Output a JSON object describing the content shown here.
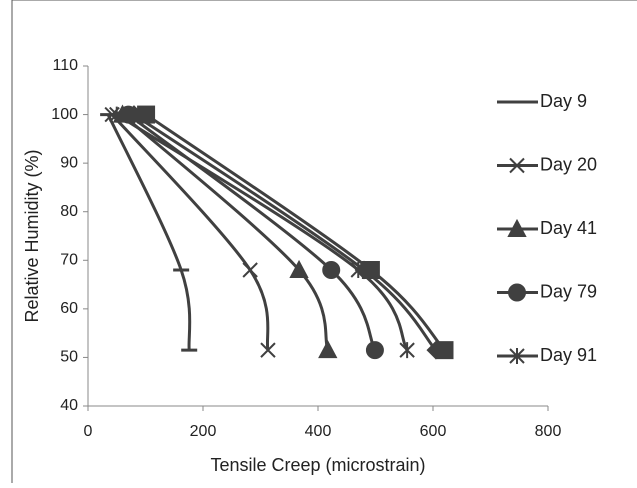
{
  "chart_data": {
    "type": "scatter",
    "x_label": "Tensile Creep (microstrain)",
    "y_label": "Relative Humidity (%)",
    "xlim": [
      0,
      800
    ],
    "xticks": [
      0,
      200,
      400,
      600,
      800
    ],
    "ylim": [
      40,
      110
    ],
    "yticks": [
      40,
      50,
      60,
      70,
      80,
      90,
      100,
      110
    ],
    "grid": false,
    "legend": "right",
    "series": [
      {
        "name": "Day 9",
        "marker": "dash",
        "color": "#404040",
        "x": [
          35,
          162,
          176
        ],
        "values": [
          100,
          68,
          51.5
        ]
      },
      {
        "name": "Day 20",
        "marker": "x",
        "color": "#404040",
        "x": [
          42,
          282,
          313
        ],
        "values": [
          100,
          68,
          51.5
        ]
      },
      {
        "name": "Day 41",
        "marker": "triangle",
        "color": "#404040",
        "x": [
          60,
          367,
          417
        ],
        "values": [
          100,
          68,
          51.5
        ]
      },
      {
        "name": "Day 79",
        "marker": "circle",
        "color": "#404040",
        "x": [
          70,
          423,
          499
        ],
        "values": [
          100,
          68,
          51.5
        ]
      },
      {
        "name": "Day 91",
        "marker": "asterisk",
        "color": "#404040",
        "x": [
          50,
          470,
          555
        ],
        "values": [
          100,
          68,
          51.5
        ]
      },
      {
        "marker": "diamond",
        "color": "#404040",
        "x": [
          80,
          480,
          605
        ],
        "values": [
          100,
          68,
          51.5
        ]
      },
      {
        "marker": "square",
        "color": "#404040",
        "x": [
          101,
          492,
          620
        ],
        "values": [
          100,
          68,
          51.5
        ]
      }
    ]
  }
}
